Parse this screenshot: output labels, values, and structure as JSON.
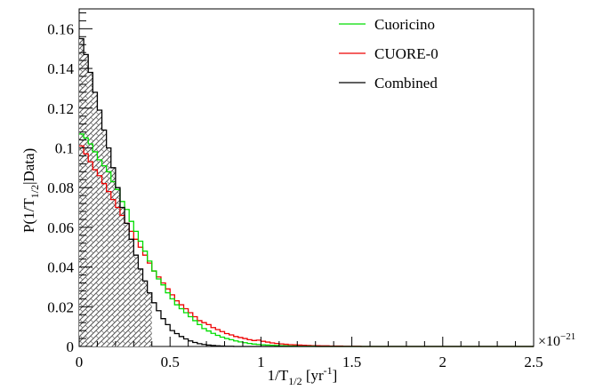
{
  "chart_data": {
    "type": "histogram",
    "xlabel": {
      "prefix": "1/T",
      "sub": "1/2",
      "suffix": " [yr",
      "sup": "-1",
      "end": "]"
    },
    "ylabel": {
      "prefix": "P(1/T",
      "sub": "1/2",
      "suffix": "|Data)"
    },
    "x_exponent": {
      "base": "×10",
      "exp": "−21"
    },
    "xlim": [
      0,
      2.5
    ],
    "ylim": [
      0,
      0.17
    ],
    "x_ticks": [
      0,
      0.5,
      1,
      1.5,
      2,
      2.5
    ],
    "x_tick_labels": [
      "0",
      "0.5",
      "1",
      "1.5",
      "2",
      "2.5"
    ],
    "y_ticks": [
      0,
      0.02,
      0.04,
      0.06,
      0.08,
      0.1,
      0.12,
      0.14,
      0.16
    ],
    "y_tick_labels": [
      "0",
      "0.02",
      "0.04",
      "0.06",
      "0.08",
      "0.1",
      "0.12",
      "0.14",
      "0.16"
    ],
    "bin_width": 0.025,
    "series": [
      {
        "name": "Cuoricino",
        "color": "#00dd00",
        "values": [
          0.107,
          0.105,
          0.102,
          0.098,
          0.094,
          0.091,
          0.088,
          0.083,
          0.079,
          0.073,
          0.069,
          0.063,
          0.058,
          0.053,
          0.048,
          0.043,
          0.038,
          0.034,
          0.031,
          0.027,
          0.024,
          0.021,
          0.019,
          0.017,
          0.015,
          0.013,
          0.011,
          0.009,
          0.0078,
          0.0066,
          0.0056,
          0.0047,
          0.004,
          0.0034,
          0.0028,
          0.0023,
          0.0019,
          0.0015,
          0.0012,
          0.001,
          0.0008,
          0.0007,
          0.0006,
          0.0005,
          0.0004,
          0.0003,
          0.0002,
          0.0002,
          0.0001,
          0.0001,
          0.0001,
          0.0001,
          0,
          0,
          0,
          0,
          0,
          0,
          0,
          0,
          0,
          0,
          0,
          0,
          0,
          0,
          0,
          0,
          0,
          0,
          0,
          0,
          0,
          0,
          0,
          0,
          0,
          0,
          0,
          0,
          0,
          0,
          0,
          0,
          0,
          0,
          0,
          0,
          0,
          0,
          0,
          0,
          0,
          0,
          0,
          0,
          0,
          0,
          0,
          0
        ]
      },
      {
        "name": "CUORE-0",
        "color": "#ee0000",
        "values": [
          0.101,
          0.097,
          0.093,
          0.089,
          0.086,
          0.082,
          0.078,
          0.074,
          0.07,
          0.066,
          0.062,
          0.058,
          0.054,
          0.05,
          0.046,
          0.042,
          0.038,
          0.035,
          0.032,
          0.029,
          0.026,
          0.023,
          0.021,
          0.019,
          0.017,
          0.015,
          0.013,
          0.012,
          0.011,
          0.0095,
          0.0085,
          0.0075,
          0.0065,
          0.0058,
          0.005,
          0.0045,
          0.004,
          0.0034,
          0.003,
          0.0032,
          0.0026,
          0.0022,
          0.0018,
          0.0015,
          0.0013,
          0.0011,
          0.0009,
          0.0008,
          0.0007,
          0.0006,
          0.0005,
          0.0004,
          0.0004,
          0.0003,
          0.0003,
          0.0002,
          0.0002,
          0.0002,
          0.0001,
          0.0001,
          0.0001,
          0.0001,
          0,
          0,
          0,
          0,
          0,
          0,
          0,
          0,
          0,
          0,
          0,
          0,
          0,
          0,
          0,
          0,
          0,
          0,
          0,
          0,
          0,
          0,
          0,
          0,
          0,
          0,
          0,
          0,
          0,
          0,
          0,
          0,
          0,
          0,
          0,
          0,
          0,
          0
        ]
      },
      {
        "name": "Combined",
        "color": "#000000",
        "values": [
          0.155,
          0.147,
          0.138,
          0.128,
          0.119,
          0.109,
          0.1,
          0.09,
          0.08,
          0.07,
          0.062,
          0.054,
          0.046,
          0.039,
          0.033,
          0.027,
          0.022,
          0.018,
          0.014,
          0.011,
          0.008,
          0.0065,
          0.005,
          0.0038,
          0.0028,
          0.002,
          0.0014,
          0.001,
          0.0007,
          0.0005,
          0.0003,
          0.0002,
          0.0001,
          0.0001,
          0,
          0,
          0,
          0,
          0,
          0,
          0,
          0,
          0,
          0,
          0,
          0,
          0,
          0,
          0,
          0,
          0,
          0,
          0,
          0,
          0,
          0,
          0,
          0,
          0,
          0,
          0,
          0,
          0,
          0,
          0,
          0,
          0,
          0,
          0,
          0,
          0,
          0,
          0,
          0,
          0,
          0,
          0,
          0,
          0,
          0,
          0,
          0,
          0,
          0,
          0,
          0,
          0,
          0,
          0,
          0,
          0,
          0,
          0,
          0,
          0,
          0,
          0,
          0,
          0,
          0
        ]
      }
    ],
    "shaded_region": {
      "series": "Combined",
      "x_max": 0.4,
      "fill": "hatched"
    },
    "legend": {
      "position": "top-right"
    },
    "grid": false
  }
}
